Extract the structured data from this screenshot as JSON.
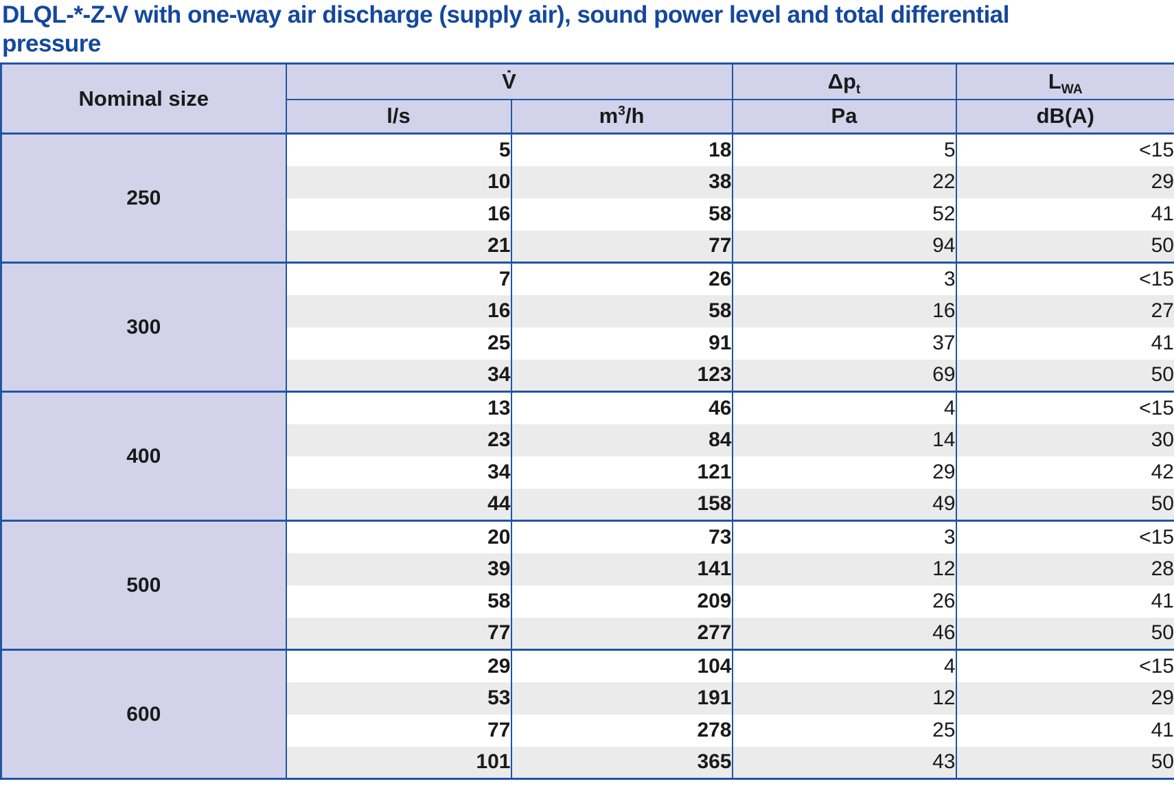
{
  "page": {
    "title": "DLQL-*-Z-V with one-way air discharge (supply air), sound power level and total differential pressure"
  },
  "colors": {
    "title_blue": "#14489B",
    "border_blue": "#2254A6",
    "header_bg": "#D2D3EA",
    "stripe_bg": "#EBEBEB",
    "text": "#1A1A1A"
  },
  "table": {
    "header": {
      "nominal_size": "Nominal size",
      "flow_symbol": "V̇",
      "dp_base": "Δp",
      "dp_sub": "t",
      "lwa_base": "L",
      "lwa_sub": "WA",
      "unit_ls": "l/s",
      "unit_m3h_base": "m",
      "unit_m3h_sup": "3",
      "unit_m3h_rest": "/h",
      "unit_pa": "Pa",
      "unit_dba": "dB(A)"
    },
    "columns": [
      "Nominal size",
      "V l/s",
      "V m3/h",
      "Delta p t Pa",
      "LWA dB(A)"
    ],
    "groups": [
      {
        "size": "250",
        "rows": [
          [
            "5",
            "18",
            "5",
            "<15"
          ],
          [
            "10",
            "38",
            "22",
            "29"
          ],
          [
            "16",
            "58",
            "52",
            "41"
          ],
          [
            "21",
            "77",
            "94",
            "50"
          ]
        ]
      },
      {
        "size": "300",
        "rows": [
          [
            "7",
            "26",
            "3",
            "<15"
          ],
          [
            "16",
            "58",
            "16",
            "27"
          ],
          [
            "25",
            "91",
            "37",
            "41"
          ],
          [
            "34",
            "123",
            "69",
            "50"
          ]
        ]
      },
      {
        "size": "400",
        "rows": [
          [
            "13",
            "46",
            "4",
            "<15"
          ],
          [
            "23",
            "84",
            "14",
            "30"
          ],
          [
            "34",
            "121",
            "29",
            "42"
          ],
          [
            "44",
            "158",
            "49",
            "50"
          ]
        ]
      },
      {
        "size": "500",
        "rows": [
          [
            "20",
            "73",
            "3",
            "<15"
          ],
          [
            "39",
            "141",
            "12",
            "28"
          ],
          [
            "58",
            "209",
            "26",
            "41"
          ],
          [
            "77",
            "277",
            "46",
            "50"
          ]
        ]
      },
      {
        "size": "600",
        "rows": [
          [
            "29",
            "104",
            "4",
            "<15"
          ],
          [
            "53",
            "191",
            "12",
            "29"
          ],
          [
            "77",
            "278",
            "25",
            "41"
          ],
          [
            "101",
            "365",
            "43",
            "50"
          ]
        ]
      }
    ]
  }
}
